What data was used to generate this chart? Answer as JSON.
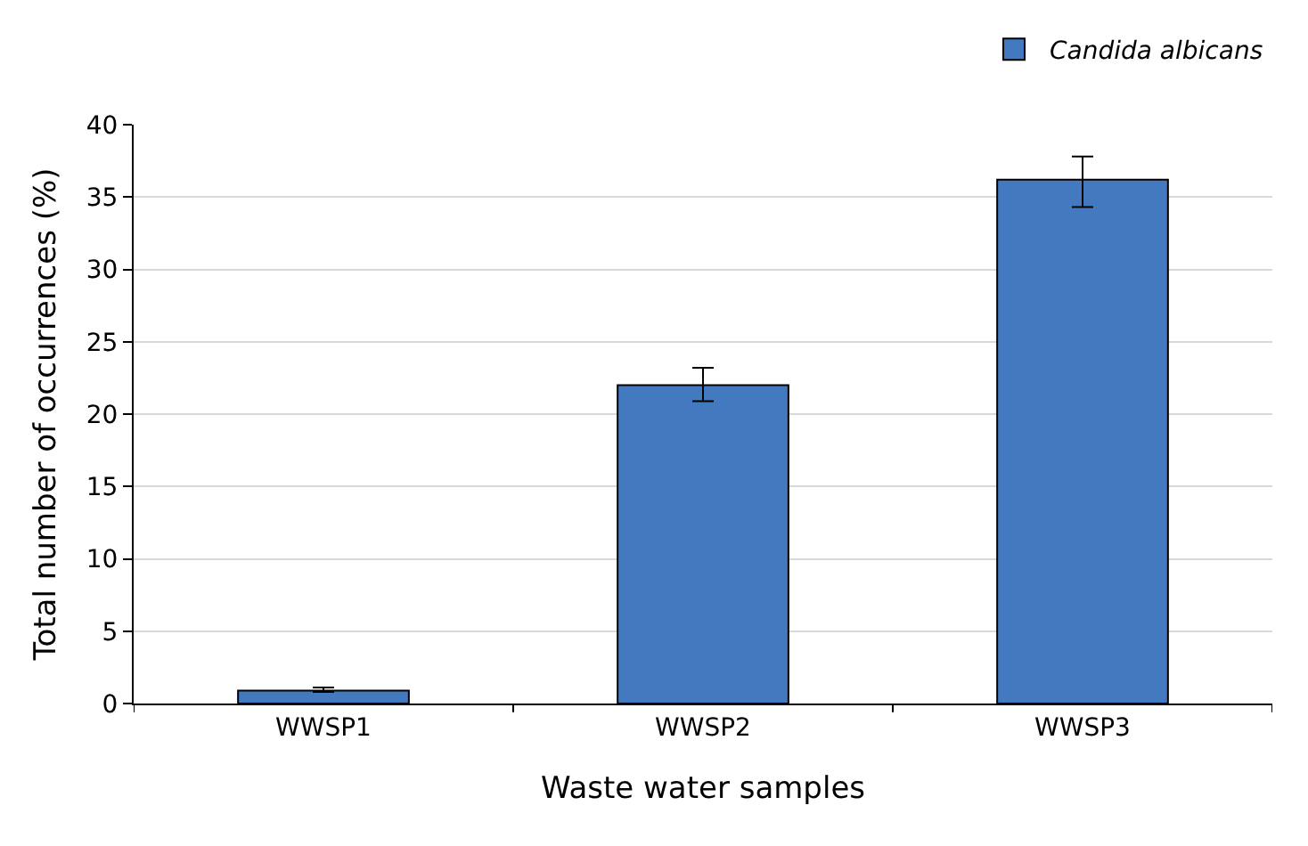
{
  "chart_data": {
    "type": "bar",
    "xlabel": "Waste water samples",
    "ylabel": "Total number of occurrences (%)",
    "categories": [
      "WWSP1",
      "WWSP2",
      "WWSP3"
    ],
    "series": [
      {
        "name": "Candida albicans",
        "color": "#4279bf",
        "values": [
          0.9,
          22,
          36.2
        ],
        "errors": [
          [
            0.8,
            1.1
          ],
          [
            20.9,
            23.2
          ],
          [
            34.3,
            37.8
          ]
        ]
      }
    ],
    "ylim": [
      0,
      40
    ],
    "yticks": [
      0,
      5,
      10,
      15,
      20,
      25,
      30,
      35,
      40
    ],
    "grid": "y",
    "legend": "top right"
  }
}
